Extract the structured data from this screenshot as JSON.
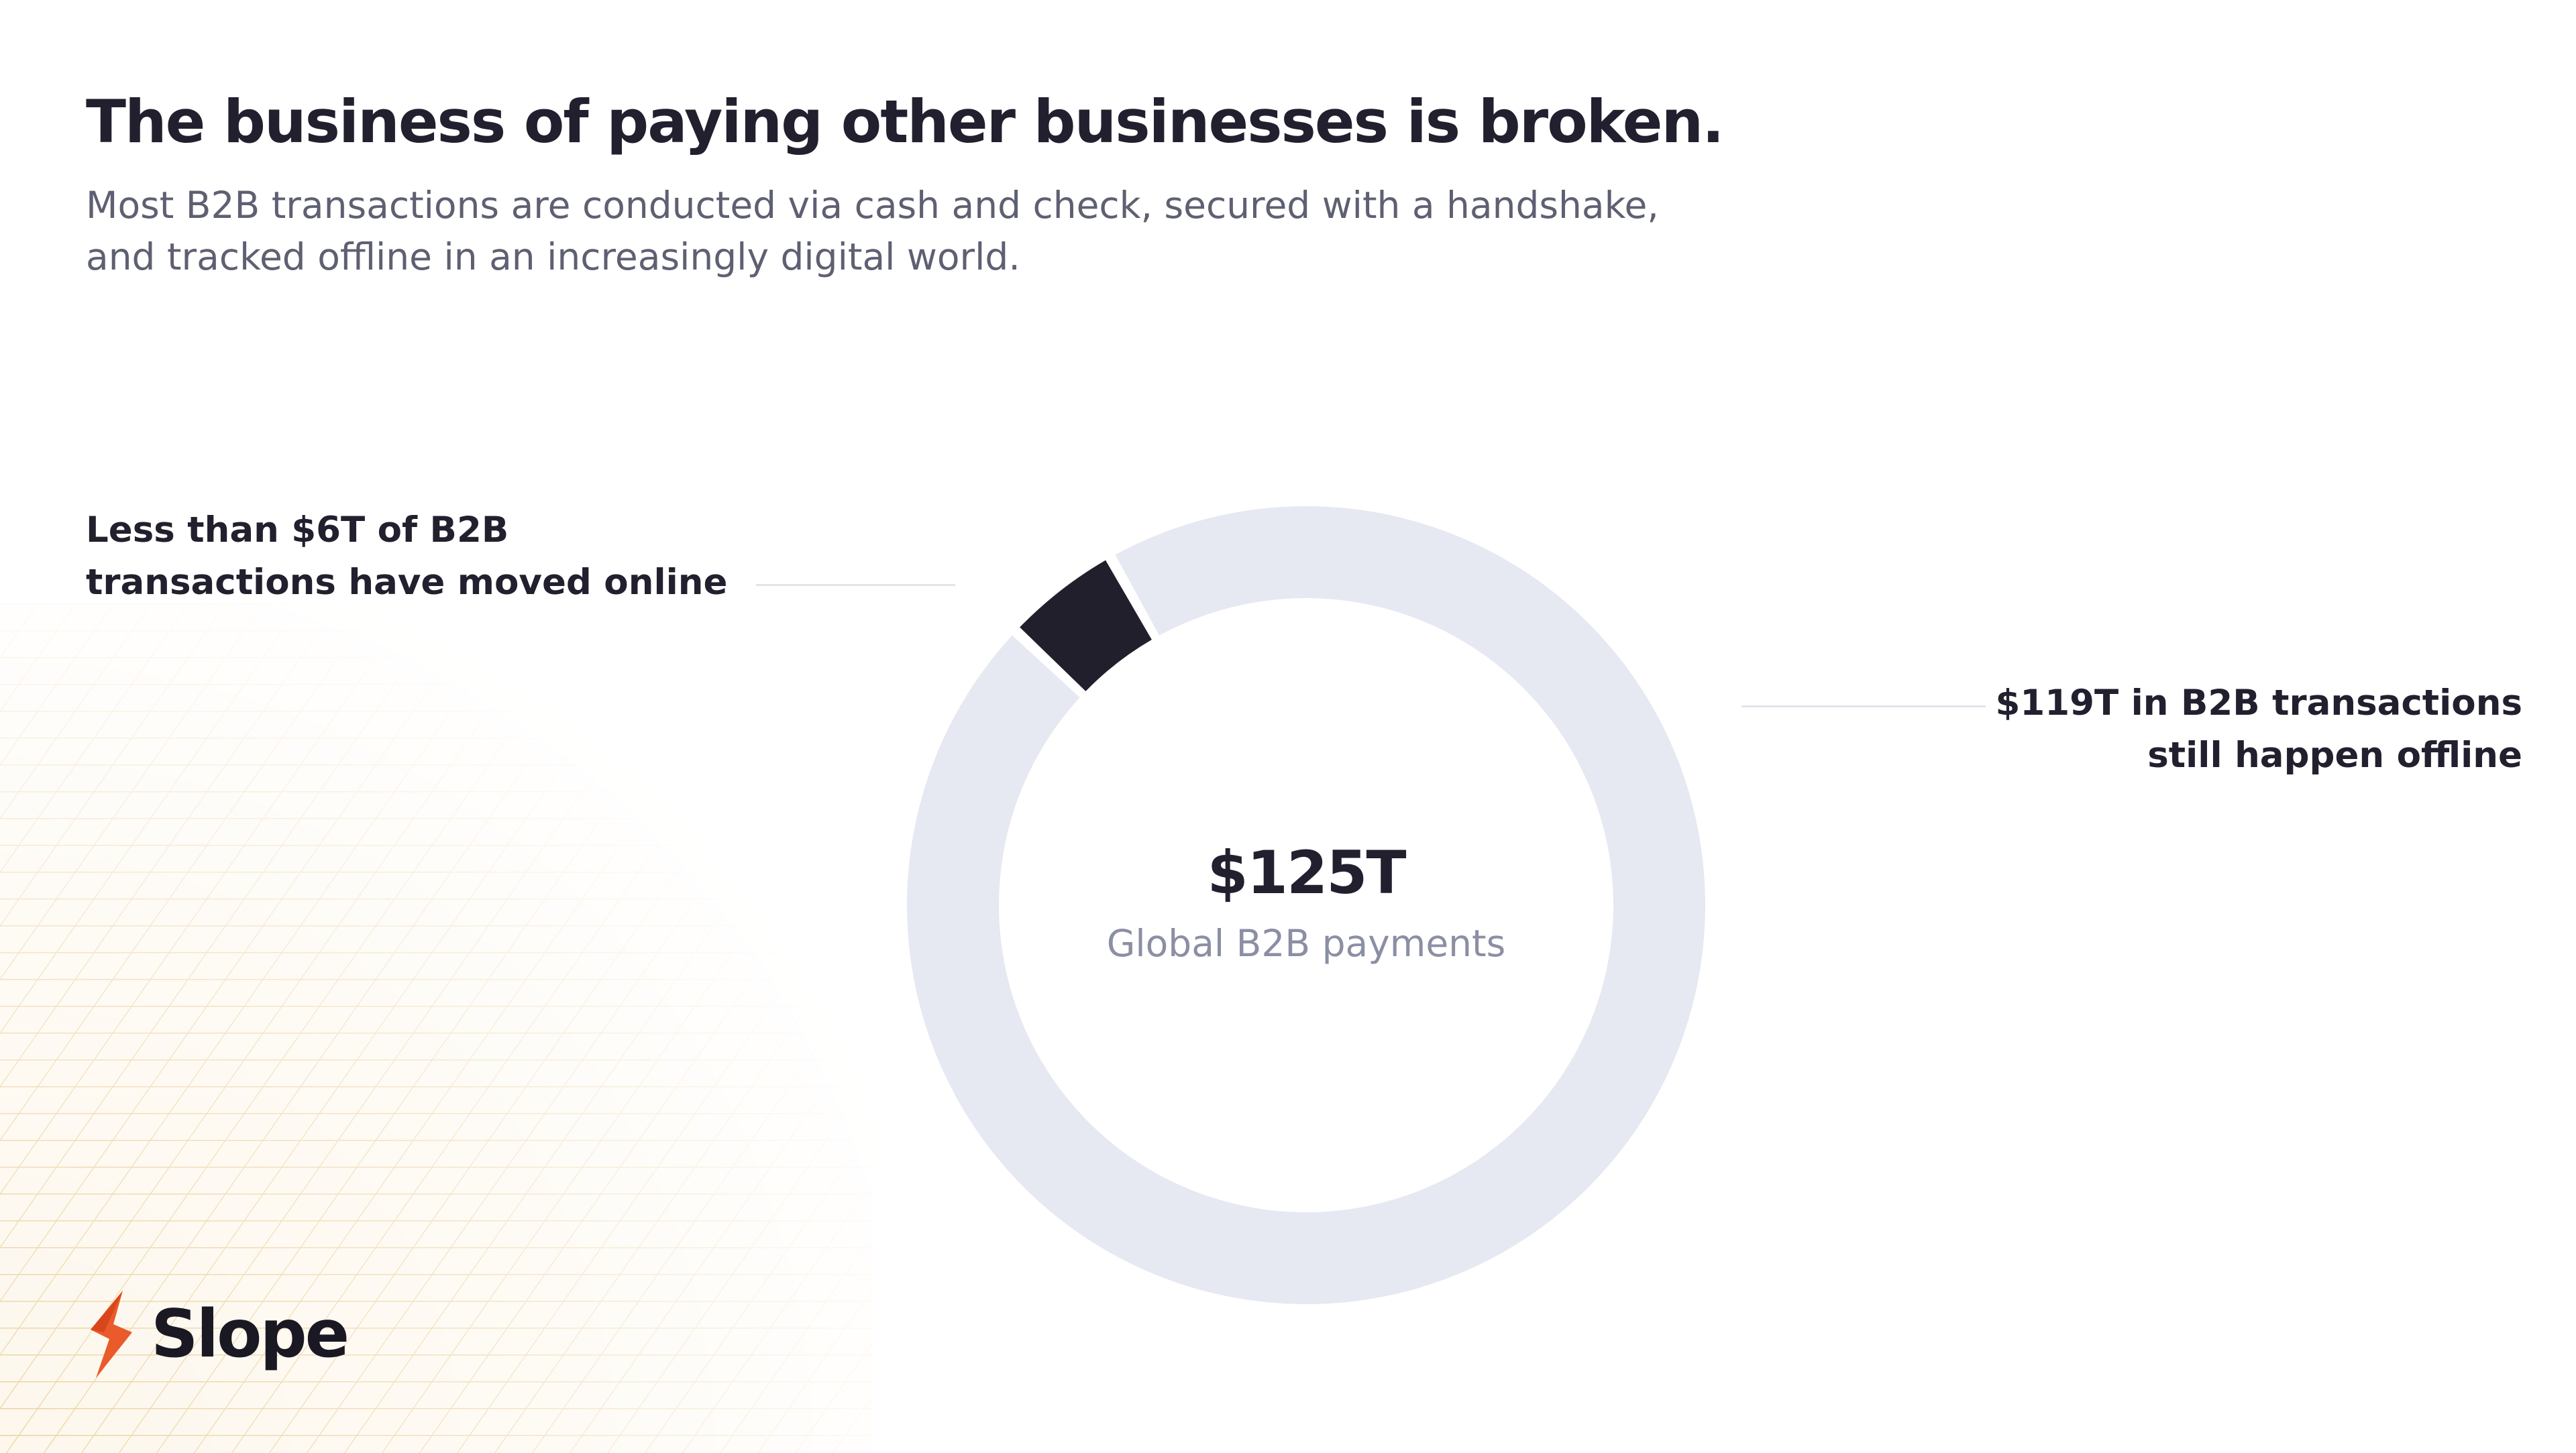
{
  "header": {
    "title": "The business of paying other businesses is broken.",
    "subtitle_line1": "Most B2B transactions are conducted via cash and check, secured with a handshake,",
    "subtitle_line2": "and tracked offline in an increasingly digital world."
  },
  "chart_data": {
    "type": "pie",
    "style": "donut",
    "total_label": "$125T",
    "center_caption": "Global B2B payments",
    "slices": [
      {
        "label_line1": "Less than $6T of B2B",
        "label_line2": "transactions have moved online",
        "value": 6,
        "color": "#221f2d"
      },
      {
        "label_line1": "$119T in B2B transactions",
        "label_line2": "still happen offline",
        "value": 119,
        "color": "#e6e8f2"
      }
    ],
    "legend": "none"
  },
  "brand": {
    "name": "Slope",
    "accent": "#ea5a2a",
    "icon": "lightning-bolt-icon"
  }
}
